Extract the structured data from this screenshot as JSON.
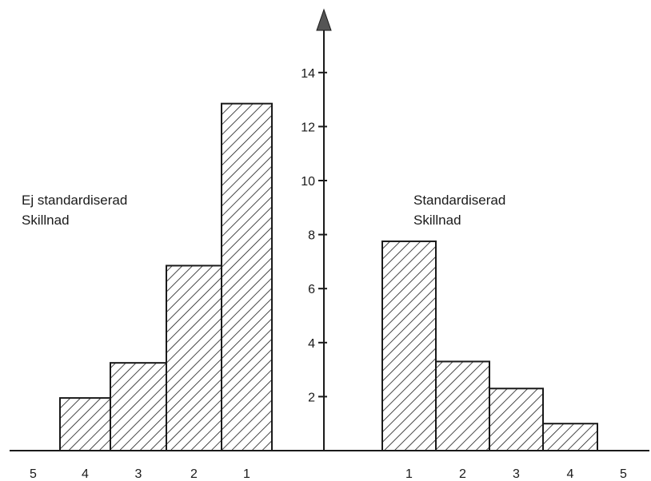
{
  "chart_data": {
    "type": "bar",
    "ylim": [
      0,
      15
    ],
    "y_ticks": [
      "2",
      "4",
      "6",
      "8",
      "10",
      "12",
      "14"
    ],
    "left_panel": {
      "label_line1": "Ej standardiserad",
      "label_line2": "Skillnad",
      "categories": [
        "5",
        "4",
        "3",
        "2",
        "1"
      ],
      "values": [
        0,
        1.95,
        3.25,
        6.85,
        12.85
      ]
    },
    "right_panel": {
      "label_line1": "Standardiserad",
      "label_line2": "Skillnad",
      "categories": [
        "1",
        "2",
        "3",
        "4",
        "5"
      ],
      "values": [
        7.75,
        3.3,
        2.3,
        1.0,
        0
      ]
    },
    "hatch": "diagonal",
    "bar_fill": "#ffffff",
    "bar_stroke": "#1a1a1a"
  }
}
